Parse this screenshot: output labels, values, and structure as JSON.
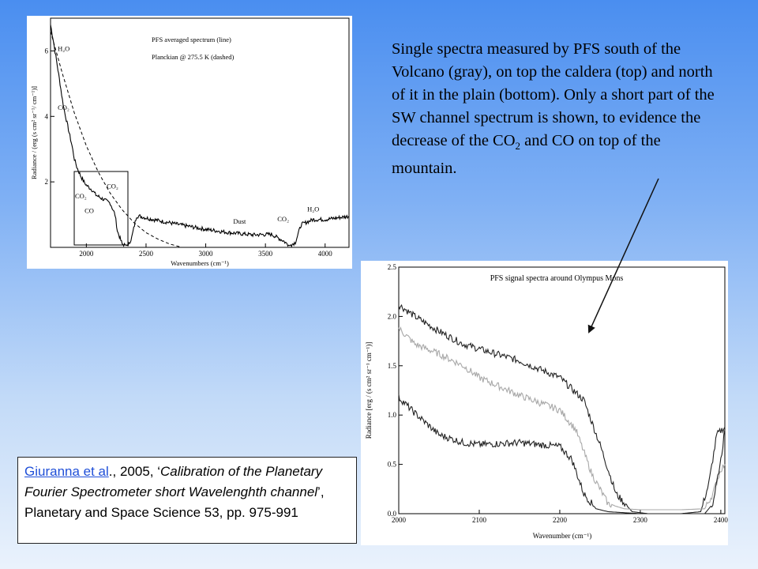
{
  "description": {
    "part1": "Single spectra measured by PFS south of the Volcano (gray), on top the caldera (top) and north of it in the plain (bottom). Only a short part of the SW channel spectrum is shown, to evidence the decrease of the CO",
    "sub": "2",
    "part2": " and CO on top of the mountain."
  },
  "citation": {
    "link_text": "Giuranna et al",
    "text_after_link": "., 2005, ‘",
    "title": "Calibration of the Planetary Fourier Spectrometer short Wavelenghth channel",
    "text_after_title": "’, Planetary and Space Science 53, pp. 975-991"
  },
  "colors": {
    "gray_series": "#a8a8a8",
    "dark_series": "#222222",
    "arrow": "#111111"
  },
  "chart_data": [
    {
      "type": "line",
      "legend": [
        "PFS averaged spectrum (line)",
        "Planckian @ 275.5 K (dashed)"
      ],
      "xlabel": "Wavenumbers (cm⁻¹)",
      "ylabel": "Radiance / (erg (s cm² sr⁻¹/ cm⁻¹)]",
      "xlim": [
        1700,
        4200
      ],
      "ylim": [
        0,
        7
      ],
      "xticks": [
        2000,
        2500,
        3000,
        3500,
        4000
      ],
      "yticks": [
        2,
        4,
        6
      ],
      "annotations": [
        {
          "text": "H₂O",
          "x": 1760,
          "y": 6.0
        },
        {
          "text": "CO₂",
          "x": 1760,
          "y": 4.2
        },
        {
          "text": "CO₂",
          "x": 1905,
          "y": 1.5
        },
        {
          "text": "CO₂",
          "x": 2170,
          "y": 1.8
        },
        {
          "text": "CO",
          "x": 1985,
          "y": 1.05
        },
        {
          "text": "Dust",
          "x": 3230,
          "y": 0.72
        },
        {
          "text": "CO₂",
          "x": 3600,
          "y": 0.8
        },
        {
          "text": "H₂O",
          "x": 3850,
          "y": 1.1
        }
      ],
      "series": [
        {
          "style": "solid",
          "x": [
            1700,
            1720,
            1750,
            1780,
            1800,
            1820,
            1850,
            1880,
            1900,
            1920,
            1950,
            1980,
            2000,
            2050,
            2080,
            2150,
            2200,
            2240,
            2260,
            2300,
            2350,
            2380,
            2420,
            2450,
            2500,
            2600,
            2800,
            3000,
            3200,
            3400,
            3550,
            3650,
            3700,
            3750,
            3800,
            3900,
            4000,
            4100,
            4200
          ],
          "y": [
            6.8,
            6.4,
            5.7,
            5.0,
            4.5,
            4.1,
            3.6,
            3.1,
            2.7,
            2.45,
            2.2,
            2.0,
            1.9,
            1.75,
            1.6,
            1.45,
            1.35,
            1.0,
            0.5,
            0.1,
            0.05,
            0.3,
            0.95,
            0.95,
            0.9,
            0.82,
            0.68,
            0.55,
            0.45,
            0.38,
            0.4,
            0.2,
            0.05,
            0.15,
            0.7,
            0.85,
            0.85,
            0.9,
            0.95
          ]
        },
        {
          "style": "dashed",
          "x": [
            1700,
            1800,
            1900,
            2000,
            2100,
            2200,
            2300,
            2400,
            2500,
            2600,
            2700,
            2800
          ],
          "y": [
            6.6,
            5.3,
            4.1,
            3.1,
            2.3,
            1.65,
            1.15,
            0.75,
            0.45,
            0.25,
            0.1,
            0.0
          ]
        }
      ]
    },
    {
      "type": "line",
      "title": "PFS signal spectra around Olympus Mons",
      "xlabel": "Wavenumber (cm⁻¹)",
      "ylabel": "Radiance [erg / (s cm² sr⁻¹ cm⁻¹)]",
      "xlim": [
        2000,
        2405
      ],
      "ylim": [
        0,
        2.5
      ],
      "xticks": [
        2000,
        2100,
        2200,
        2300,
        2400
      ],
      "yticks": [
        0.0,
        0.5,
        1.0,
        1.5,
        2.0,
        2.5
      ],
      "series": [
        {
          "color": "#222222",
          "x": [
            2000,
            2020,
            2050,
            2080,
            2100,
            2150,
            2200,
            2230,
            2250,
            2270,
            2290,
            2310,
            2350,
            2375,
            2385,
            2395,
            2405
          ],
          "y": [
            2.12,
            2.0,
            1.85,
            1.72,
            1.67,
            1.55,
            1.38,
            1.15,
            0.7,
            0.2,
            0.02,
            0.0,
            0.0,
            0.02,
            0.3,
            0.8,
            0.88
          ]
        },
        {
          "color": "#a8a8a8",
          "x": [
            2000,
            2020,
            2050,
            2080,
            2100,
            2150,
            2200,
            2220,
            2240,
            2260,
            2280,
            2300,
            2350,
            2380,
            2390,
            2400,
            2405
          ],
          "y": [
            1.88,
            1.72,
            1.62,
            1.5,
            1.38,
            1.2,
            1.05,
            0.85,
            0.4,
            0.1,
            0.05,
            0.04,
            0.04,
            0.05,
            0.2,
            0.45,
            0.5
          ]
        },
        {
          "color": "#222222",
          "x": [
            2000,
            2020,
            2050,
            2080,
            2100,
            2150,
            2200,
            2215,
            2230,
            2245,
            2260,
            2300,
            2350,
            2380,
            2390,
            2400,
            2405
          ],
          "y": [
            1.18,
            1.02,
            0.8,
            0.72,
            0.7,
            0.72,
            0.68,
            0.55,
            0.2,
            0.05,
            0.02,
            0.0,
            0.0,
            0.0,
            0.1,
            0.55,
            0.85
          ]
        }
      ]
    }
  ]
}
